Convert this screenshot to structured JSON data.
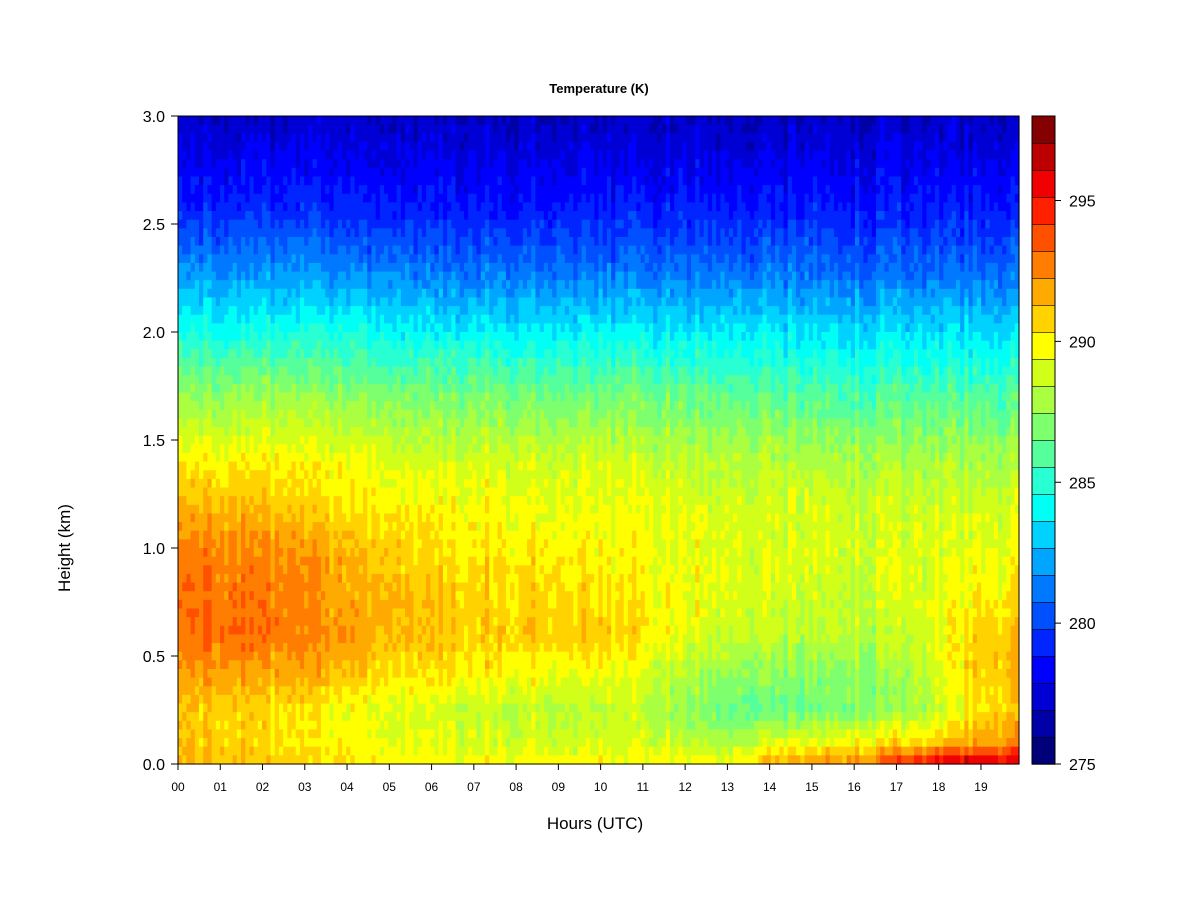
{
  "chart_data": {
    "type": "heatmap",
    "title": "Temperature (K)",
    "xlabel": "Hours (UTC)",
    "ylabel": "Height (km)",
    "x_ticks": [
      "00",
      "01",
      "02",
      "03",
      "04",
      "05",
      "06",
      "07",
      "08",
      "09",
      "10",
      "11",
      "12",
      "13",
      "14",
      "15",
      "16",
      "17",
      "18",
      "19"
    ],
    "y_ticks": [
      "0.0",
      "0.5",
      "1.0",
      "1.5",
      "2.0",
      "2.5",
      "3.0"
    ],
    "xlim": [
      0,
      19.9
    ],
    "ylim": [
      0,
      3.0
    ],
    "colorbar": {
      "range": [
        275,
        298
      ],
      "ticks": [
        "275",
        "280",
        "285",
        "290",
        "295"
      ],
      "colors": [
        "#00007a",
        "#0000a8",
        "#0000d4",
        "#0000ff",
        "#0025ff",
        "#0050ff",
        "#0078ff",
        "#00a5ff",
        "#00d2ff",
        "#00fff5",
        "#28ffd2",
        "#55ff9b",
        "#7dff6e",
        "#aaff41",
        "#d2ff19",
        "#ffff00",
        "#ffd200",
        "#ffaa00",
        "#ff7d00",
        "#ff5000",
        "#ff2000",
        "#f00000",
        "#bc0000",
        "#850000"
      ]
    },
    "profile_hours": [
      0,
      1,
      2,
      3,
      4,
      5,
      6,
      7,
      8,
      9,
      10,
      11,
      12,
      13,
      14,
      15,
      16,
      17,
      18,
      19,
      19.9
    ],
    "profile_heights_km": [
      0.0,
      0.1,
      0.25,
      0.4,
      0.6,
      0.8,
      1.0,
      1.2,
      1.4,
      1.7,
      2.0,
      2.3,
      2.6,
      3.0
    ],
    "temperature_K": [
      [
        291.5,
        291.0,
        291.0,
        292.0,
        293.0,
        293.0,
        292.5,
        291.5,
        290.0,
        287.5,
        284.5,
        281.5,
        279.0,
        277.0
      ],
      [
        291.5,
        291.0,
        291.0,
        292.0,
        293.3,
        293.0,
        292.5,
        291.5,
        290.0,
        287.5,
        284.5,
        281.5,
        279.0,
        277.0
      ],
      [
        291.0,
        290.5,
        290.5,
        291.5,
        293.0,
        292.8,
        292.3,
        291.0,
        290.0,
        287.5,
        284.5,
        281.5,
        279.0,
        277.0
      ],
      [
        290.5,
        290.0,
        290.0,
        291.5,
        292.5,
        292.3,
        292.0,
        290.5,
        289.8,
        287.5,
        284.5,
        281.5,
        279.0,
        277.0
      ],
      [
        290.5,
        289.8,
        289.5,
        291.0,
        292.0,
        291.5,
        291.3,
        290.3,
        289.5,
        287.3,
        284.3,
        281.3,
        278.8,
        277.0
      ],
      [
        290.3,
        289.5,
        289.3,
        290.5,
        291.5,
        291.5,
        291.0,
        290.0,
        289.3,
        287.0,
        284.3,
        281.3,
        278.8,
        277.0
      ],
      [
        290.0,
        289.3,
        289.0,
        290.3,
        291.3,
        291.0,
        290.5,
        290.0,
        289.0,
        287.0,
        284.0,
        281.0,
        278.8,
        277.0
      ],
      [
        290.0,
        289.0,
        288.8,
        290.0,
        291.0,
        290.8,
        290.3,
        289.8,
        289.0,
        287.0,
        284.0,
        281.0,
        278.8,
        277.0
      ],
      [
        290.0,
        289.0,
        288.5,
        290.0,
        291.0,
        290.8,
        290.3,
        289.8,
        289.0,
        287.0,
        284.0,
        281.0,
        278.8,
        277.0
      ],
      [
        290.0,
        289.0,
        288.5,
        289.5,
        291.0,
        290.8,
        290.0,
        289.5,
        289.0,
        286.8,
        284.0,
        281.0,
        278.8,
        277.0
      ],
      [
        290.0,
        289.0,
        288.5,
        289.5,
        291.0,
        290.5,
        290.0,
        289.5,
        289.0,
        286.8,
        284.0,
        281.0,
        278.8,
        277.0
      ],
      [
        290.0,
        289.0,
        288.5,
        289.0,
        290.5,
        290.0,
        289.8,
        289.5,
        288.8,
        286.8,
        284.0,
        281.0,
        278.8,
        277.0
      ],
      [
        290.0,
        288.5,
        287.5,
        288.0,
        289.5,
        289.5,
        289.5,
        289.3,
        288.5,
        286.5,
        283.8,
        281.0,
        278.8,
        277.0
      ],
      [
        290.0,
        288.0,
        286.5,
        287.5,
        288.8,
        289.3,
        289.3,
        289.0,
        288.3,
        286.5,
        283.8,
        281.0,
        278.8,
        277.0
      ],
      [
        291.5,
        289.0,
        286.5,
        287.3,
        288.5,
        289.0,
        289.0,
        289.0,
        288.3,
        286.3,
        283.8,
        281.0,
        278.8,
        277.0
      ],
      [
        292.0,
        289.5,
        286.5,
        287.0,
        288.3,
        288.8,
        289.0,
        289.0,
        288.0,
        286.0,
        283.5,
        281.0,
        278.8,
        277.0
      ],
      [
        292.5,
        290.0,
        287.0,
        287.3,
        288.3,
        288.8,
        289.0,
        288.8,
        288.0,
        286.0,
        283.5,
        280.8,
        278.8,
        277.0
      ],
      [
        294.0,
        290.5,
        287.3,
        287.5,
        288.5,
        289.0,
        289.0,
        288.8,
        288.0,
        286.0,
        283.5,
        280.8,
        278.8,
        277.0
      ],
      [
        296.0,
        291.0,
        288.5,
        289.0,
        289.5,
        289.3,
        289.0,
        288.8,
        288.0,
        286.0,
        283.5,
        280.8,
        278.8,
        277.0
      ],
      [
        296.5,
        292.0,
        290.5,
        291.0,
        291.0,
        290.0,
        289.5,
        288.8,
        288.0,
        286.0,
        283.5,
        280.8,
        278.8,
        277.0
      ],
      [
        296.0,
        292.5,
        291.0,
        291.5,
        291.3,
        290.3,
        289.5,
        289.0,
        288.0,
        286.0,
        283.5,
        280.8,
        278.8,
        277.0
      ]
    ]
  }
}
